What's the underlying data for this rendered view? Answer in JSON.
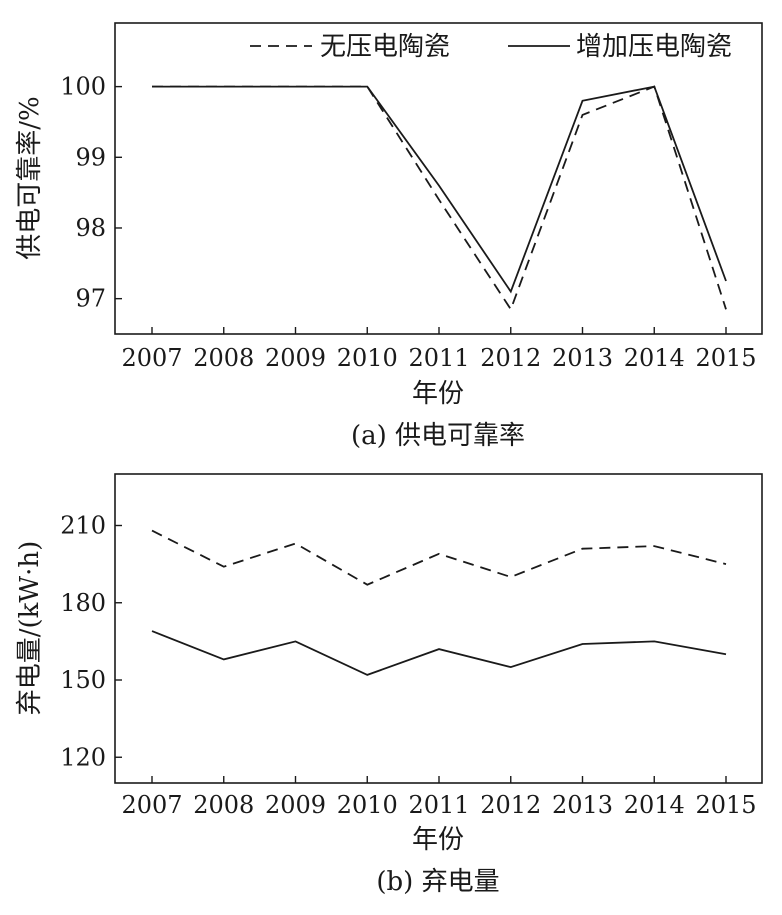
{
  "chart_data": [
    {
      "type": "line",
      "caption": "(a) 供电可靠率",
      "xlabel": "年份",
      "ylabel": "供电可靠率/%",
      "categories": [
        "2007",
        "2008",
        "2009",
        "2010",
        "2011",
        "2012",
        "2013",
        "2014",
        "2015"
      ],
      "ylim": [
        96.5,
        100.9
      ],
      "yticks": [
        97,
        98,
        99,
        100
      ],
      "grid": false,
      "legend_position": "top-right",
      "series": [
        {
          "name": "无压电陶瓷",
          "style": "dashed",
          "values": [
            100,
            100,
            100,
            100,
            98.4,
            96.85,
            99.6,
            100,
            96.85
          ]
        },
        {
          "name": "增加压电陶瓷",
          "style": "solid",
          "values": [
            100,
            100,
            100,
            100,
            98.6,
            97.1,
            99.8,
            100,
            97.25
          ]
        }
      ]
    },
    {
      "type": "line",
      "caption": "(b) 弃电量",
      "xlabel": "年份",
      "ylabel": "弃电量/(kW·h)",
      "categories": [
        "2007",
        "2008",
        "2009",
        "2010",
        "2011",
        "2012",
        "2013",
        "2014",
        "2015"
      ],
      "ylim": [
        110,
        230
      ],
      "yticks": [
        120,
        150,
        180,
        210
      ],
      "grid": false,
      "series": [
        {
          "name": "无压电陶瓷",
          "style": "dashed",
          "values": [
            208,
            194,
            203,
            187,
            199,
            190,
            201,
            202,
            195
          ]
        },
        {
          "name": "增加压电陶瓷",
          "style": "solid",
          "values": [
            169,
            158,
            165,
            152,
            162,
            155,
            164,
            165,
            160
          ]
        }
      ]
    }
  ]
}
